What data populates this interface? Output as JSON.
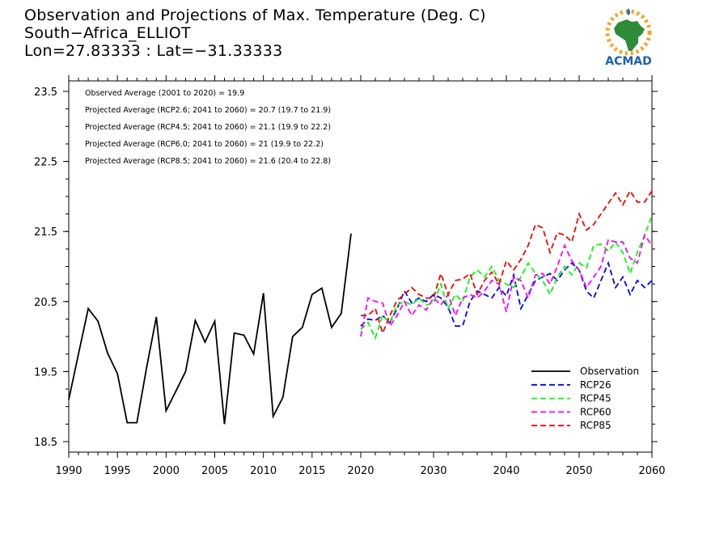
{
  "title": {
    "line1": "Observation and Projections of Max. Temperature (Deg. C)",
    "line2": "South−Africa_ELLIOT",
    "line3": "Lon=27.83333 : Lat=−31.33333"
  },
  "logo": {
    "text": "ACMAD"
  },
  "annotations": [
    "Observed Average (2001 to 2020) = 19.9",
    "Projected Average (RCP2.6; 2041 to 2060) = 20.7 (19.7 to 21.9)",
    "Projected Average (RCP4.5; 2041 to 2060) = 21.1 (19.9 to 22.2)",
    "Projected Average (RCP6.0; 2041 to 2060) = 21 (19.9 to 22.2)",
    "Projected Average (RCP8.5; 2041 to 2060) = 21.6 (20.4 to 22.8)"
  ],
  "chart_data": {
    "type": "line",
    "xlim": [
      1990,
      2060
    ],
    "ylim": [
      18.35,
      23.65
    ],
    "xticks": [
      1990,
      1995,
      2000,
      2005,
      2010,
      2015,
      2020,
      2030,
      2040,
      2050,
      2060
    ],
    "yticks": [
      18.5,
      19.5,
      20.5,
      21.5,
      22.5,
      23.5
    ],
    "ytick_labels": [
      "18.5",
      "19.5",
      "20.5",
      "21.5",
      "22.5",
      "23.5"
    ],
    "legend_position": "bottom-right",
    "series": [
      {
        "name": "Observation",
        "color": "#000000",
        "dash": "solid",
        "x": [
          1990,
          1991,
          1992,
          1993,
          1994,
          1995,
          1996,
          1997,
          1998,
          1999,
          2000,
          2001,
          2002,
          2003,
          2004,
          2005,
          2006,
          2007,
          2008,
          2009,
          2010,
          2011,
          2012,
          2013,
          2014,
          2015,
          2016,
          2017,
          2018,
          2019,
          2020
        ],
        "y": [
          19.1,
          19.75,
          20.4,
          20.22,
          19.76,
          19.47,
          18.77,
          18.77,
          19.56,
          20.28,
          18.94,
          19.22,
          19.5,
          20.23,
          19.92,
          20.22,
          18.75,
          20.05,
          20.02,
          19.75,
          20.62,
          18.86,
          19.13,
          20.0,
          20.13,
          20.6,
          20.69,
          20.13,
          20.33,
          21.47,
          null
        ]
      },
      {
        "name": "RCP26",
        "color": "#0000ff",
        "dash": "dashed",
        "x": [
          2020,
          2021,
          2022,
          2023,
          2024,
          2025,
          2026,
          2027,
          2028,
          2029,
          2030,
          2031,
          2032,
          2033,
          2034,
          2035,
          2036,
          2037,
          2038,
          2039,
          2040,
          2041,
          2042,
          2043,
          2044,
          2045,
          2046,
          2047,
          2048,
          2049,
          2050,
          2051,
          2052,
          2053,
          2054,
          2055,
          2056,
          2057,
          2058,
          2059,
          2060
        ],
        "y": [
          20.15,
          20.25,
          20.23,
          20.3,
          20.2,
          20.4,
          20.65,
          20.48,
          20.55,
          20.5,
          20.6,
          20.55,
          20.42,
          20.15,
          20.15,
          20.5,
          20.65,
          20.6,
          20.55,
          20.7,
          20.58,
          20.88,
          20.4,
          20.6,
          20.8,
          20.85,
          20.9,
          20.8,
          20.95,
          21.05,
          20.95,
          20.65,
          20.55,
          20.8,
          21.05,
          20.7,
          20.85,
          20.6,
          20.8,
          20.7,
          20.8
        ]
      },
      {
        "name": "RCP45",
        "color": "#00ff00",
        "dash": "dashed",
        "x": [
          2020,
          2021,
          2022,
          2023,
          2024,
          2025,
          2026,
          2027,
          2028,
          2029,
          2030,
          2031,
          2032,
          2033,
          2034,
          2035,
          2036,
          2037,
          2038,
          2039,
          2040,
          2041,
          2042,
          2043,
          2044,
          2045,
          2046,
          2047,
          2048,
          2049,
          2050,
          2051,
          2052,
          2053,
          2054,
          2055,
          2056,
          2057,
          2058,
          2059,
          2060
        ],
        "y": [
          20.1,
          20.2,
          19.98,
          20.3,
          20.2,
          20.45,
          20.5,
          20.45,
          20.55,
          20.45,
          20.48,
          20.75,
          20.4,
          20.6,
          20.5,
          20.85,
          20.95,
          20.85,
          21.0,
          20.8,
          20.75,
          20.7,
          20.85,
          21.05,
          20.9,
          20.8,
          20.6,
          20.85,
          21.0,
          20.88,
          21.05,
          20.98,
          21.3,
          21.32,
          21.22,
          21.35,
          21.2,
          20.9,
          21.2,
          21.45,
          21.72
        ]
      },
      {
        "name": "RCP60",
        "color": "#ff00ff",
        "dash": "dashed",
        "x": [
          2020,
          2021,
          2022,
          2023,
          2024,
          2025,
          2026,
          2027,
          2028,
          2029,
          2030,
          2031,
          2032,
          2033,
          2034,
          2035,
          2036,
          2037,
          2038,
          2039,
          2040,
          2041,
          2042,
          2043,
          2044,
          2045,
          2046,
          2047,
          2048,
          2049,
          2050,
          2051,
          2052,
          2053,
          2054,
          2055,
          2056,
          2057,
          2058,
          2059,
          2060
        ],
        "y": [
          20.0,
          20.55,
          20.5,
          20.48,
          20.15,
          20.3,
          20.5,
          20.3,
          20.45,
          20.38,
          20.55,
          20.45,
          20.6,
          20.3,
          20.55,
          20.6,
          20.55,
          20.65,
          20.8,
          20.75,
          20.35,
          20.85,
          20.8,
          20.55,
          20.88,
          20.9,
          20.75,
          21.0,
          21.3,
          21.08,
          20.95,
          20.7,
          20.85,
          21.0,
          21.38,
          21.35,
          21.35,
          21.12,
          21.05,
          21.45,
          21.3
        ]
      },
      {
        "name": "RCP85",
        "color": "#ff0000",
        "dash": "dashed",
        "x": [
          2020,
          2021,
          2022,
          2023,
          2024,
          2025,
          2026,
          2027,
          2028,
          2029,
          2030,
          2031,
          2032,
          2033,
          2034,
          2035,
          2036,
          2037,
          2038,
          2039,
          2040,
          2041,
          2042,
          2043,
          2044,
          2045,
          2046,
          2047,
          2048,
          2049,
          2050,
          2051,
          2052,
          2053,
          2054,
          2055,
          2056,
          2057,
          2058,
          2059,
          2060
        ],
        "y": [
          20.3,
          20.3,
          20.4,
          20.05,
          20.3,
          20.52,
          20.6,
          20.7,
          20.6,
          20.55,
          20.55,
          20.9,
          20.6,
          20.8,
          20.82,
          20.9,
          20.6,
          20.8,
          20.92,
          20.75,
          21.08,
          20.95,
          21.1,
          21.3,
          21.6,
          21.55,
          21.2,
          21.48,
          21.45,
          21.35,
          21.75,
          21.52,
          21.6,
          21.75,
          21.9,
          22.05,
          21.88,
          22.08,
          21.92,
          21.92,
          22.08
        ]
      }
    ]
  }
}
